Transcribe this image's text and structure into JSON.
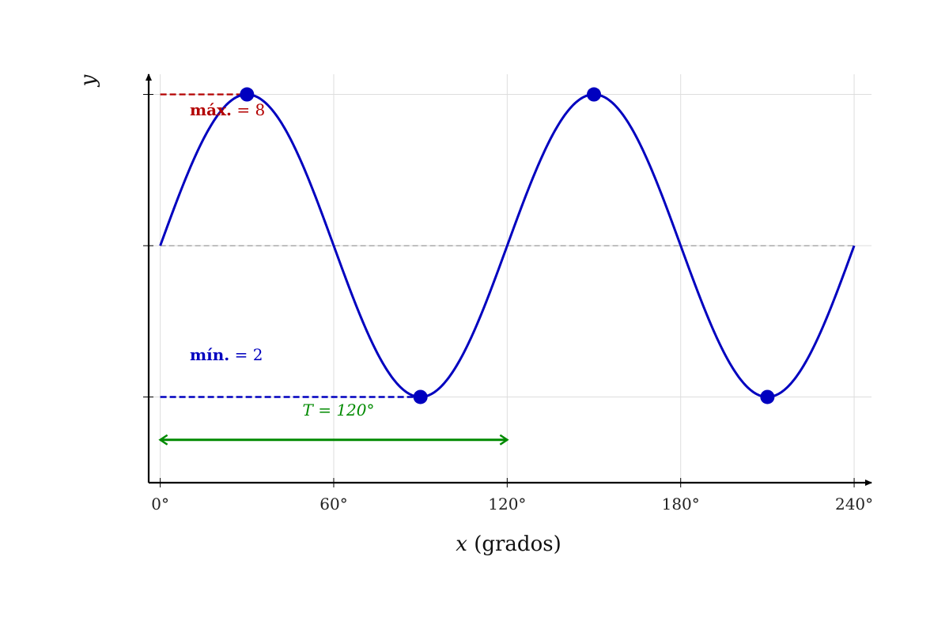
{
  "chart_data": {
    "type": "line",
    "title": "",
    "xlabel_var": "x",
    "xlabel_unit": "(grados)",
    "ylabel": "y",
    "xlim": [
      -4,
      246
    ],
    "ylim": [
      0.3,
      8.4
    ],
    "x_ticks": [
      0,
      60,
      120,
      180,
      240
    ],
    "x_tick_labels": [
      "0°",
      "60°",
      "120°",
      "180°",
      "240°"
    ],
    "y_ticks": [
      2,
      5,
      8
    ],
    "grid": true,
    "colors": {
      "curve": "#0000bf",
      "max_line": "#b30000",
      "min_line": "#0000bf",
      "period_arrow": "#008a00",
      "midline": "#aaaaaa",
      "grid": "#dddddd"
    },
    "series": [
      {
        "function": "y = 5 + 3·sin(3x)",
        "x_range": [
          0,
          240
        ],
        "amplitude": 3,
        "midline": 5,
        "frequency": 3
      }
    ],
    "points": [
      {
        "x": 30,
        "y": 8
      },
      {
        "x": 90,
        "y": 2
      },
      {
        "x": 150,
        "y": 8
      },
      {
        "x": 210,
        "y": 2
      }
    ],
    "annotations": {
      "max": {
        "value": 8,
        "bold_text": "máx.",
        "rest_text": " = 8",
        "x_from": 0,
        "x_to": 30
      },
      "min": {
        "value": 2,
        "bold_text": "mín.",
        "rest_text": " = 2",
        "x_from": 0,
        "x_to": 90
      },
      "period": {
        "text": "T = 120°",
        "x_from": 0,
        "x_to": 120,
        "y": 1.15
      },
      "midline": {
        "value": 5,
        "x_from": 0,
        "x_to": 240
      }
    }
  }
}
